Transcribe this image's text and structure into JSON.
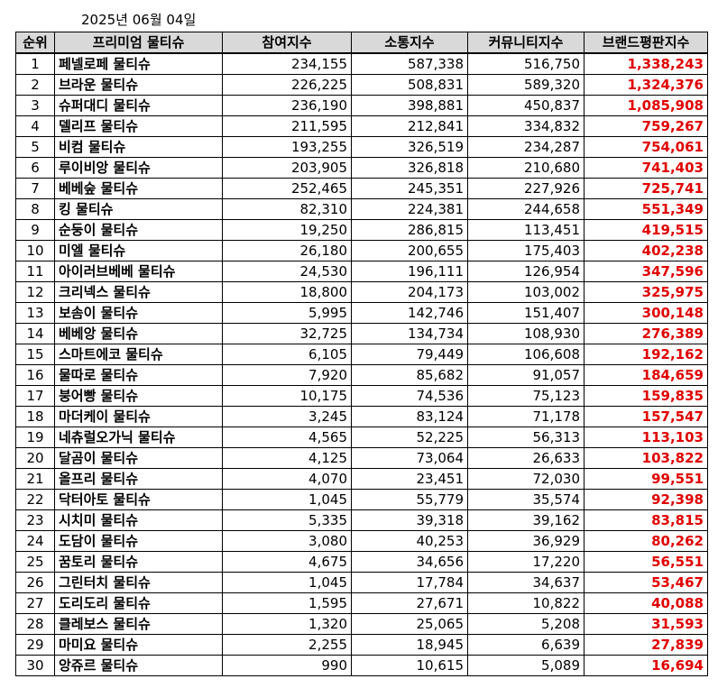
{
  "date": "2025년 06월 04일",
  "colors": {
    "header_bg": "#d9d9d9",
    "total_text": "#e00000",
    "border": "#000000"
  },
  "headers": [
    "순위",
    "프리미엄 물티슈",
    "참여지수",
    "소통지수",
    "커뮤니티지수",
    "브랜드평판지수"
  ],
  "rows": [
    {
      "rank": "1",
      "name": "페넬로페 물티슈",
      "participation": "234,155",
      "communication": "587,338",
      "community": "516,750",
      "total": "1,338,243"
    },
    {
      "rank": "2",
      "name": "브라운 물티슈",
      "participation": "226,225",
      "communication": "508,831",
      "community": "589,320",
      "total": "1,324,376"
    },
    {
      "rank": "3",
      "name": "슈퍼대디 물티슈",
      "participation": "236,190",
      "communication": "398,881",
      "community": "450,837",
      "total": "1,085,908"
    },
    {
      "rank": "4",
      "name": "델리프 물티슈",
      "participation": "211,595",
      "communication": "212,841",
      "community": "334,832",
      "total": "759,267"
    },
    {
      "rank": "5",
      "name": "비컴 물티슈",
      "participation": "193,255",
      "communication": "326,519",
      "community": "234,287",
      "total": "754,061"
    },
    {
      "rank": "6",
      "name": "루이비앙 물티슈",
      "participation": "203,905",
      "communication": "326,818",
      "community": "210,680",
      "total": "741,403"
    },
    {
      "rank": "7",
      "name": "베베숲 물티슈",
      "participation": "252,465",
      "communication": "245,351",
      "community": "227,926",
      "total": "725,741"
    },
    {
      "rank": "8",
      "name": "킹 물티슈",
      "participation": "82,310",
      "communication": "224,381",
      "community": "244,658",
      "total": "551,349"
    },
    {
      "rank": "9",
      "name": "순둥이 물티슈",
      "participation": "19,250",
      "communication": "286,815",
      "community": "113,451",
      "total": "419,515"
    },
    {
      "rank": "10",
      "name": "미엘 물티슈",
      "participation": "26,180",
      "communication": "200,655",
      "community": "175,403",
      "total": "402,238"
    },
    {
      "rank": "11",
      "name": "아이러브베베 물티슈",
      "participation": "24,530",
      "communication": "196,111",
      "community": "126,954",
      "total": "347,596"
    },
    {
      "rank": "12",
      "name": "크리넥스 물티슈",
      "participation": "18,800",
      "communication": "204,173",
      "community": "103,002",
      "total": "325,975"
    },
    {
      "rank": "13",
      "name": "보솜이 물티슈",
      "participation": "5,995",
      "communication": "142,746",
      "community": "151,407",
      "total": "300,148"
    },
    {
      "rank": "14",
      "name": "베베앙 물티슈",
      "participation": "32,725",
      "communication": "134,734",
      "community": "108,930",
      "total": "276,389"
    },
    {
      "rank": "15",
      "name": "스마트에코 물티슈",
      "participation": "6,105",
      "communication": "79,449",
      "community": "106,608",
      "total": "192,162"
    },
    {
      "rank": "16",
      "name": "물따로 물티슈",
      "participation": "7,920",
      "communication": "85,682",
      "community": "91,057",
      "total": "184,659"
    },
    {
      "rank": "17",
      "name": "붕어빵 물티슈",
      "participation": "10,175",
      "communication": "74,536",
      "community": "75,123",
      "total": "159,835"
    },
    {
      "rank": "18",
      "name": "마더케이 물티슈",
      "participation": "3,245",
      "communication": "83,124",
      "community": "71,178",
      "total": "157,547"
    },
    {
      "rank": "19",
      "name": "네츄럴오가닉 물티슈",
      "participation": "4,565",
      "communication": "52,225",
      "community": "56,313",
      "total": "113,103"
    },
    {
      "rank": "20",
      "name": "달곰이 물티슈",
      "participation": "4,125",
      "communication": "73,064",
      "community": "26,633",
      "total": "103,822"
    },
    {
      "rank": "21",
      "name": "올프리 물티슈",
      "participation": "4,070",
      "communication": "23,451",
      "community": "72,030",
      "total": "99,551"
    },
    {
      "rank": "22",
      "name": "닥터아토 물티슈",
      "participation": "1,045",
      "communication": "55,779",
      "community": "35,574",
      "total": "92,398"
    },
    {
      "rank": "23",
      "name": "시치미 물티슈",
      "participation": "5,335",
      "communication": "39,318",
      "community": "39,162",
      "total": "83,815"
    },
    {
      "rank": "24",
      "name": "도담이 물티슈",
      "participation": "3,080",
      "communication": "40,253",
      "community": "36,929",
      "total": "80,262"
    },
    {
      "rank": "25",
      "name": "꿈토리 물티슈",
      "participation": "4,675",
      "communication": "34,656",
      "community": "17,220",
      "total": "56,551"
    },
    {
      "rank": "26",
      "name": "그린터치 물티슈",
      "participation": "1,045",
      "communication": "17,784",
      "community": "34,637",
      "total": "53,467"
    },
    {
      "rank": "27",
      "name": "도리도리 물티슈",
      "participation": "1,595",
      "communication": "27,671",
      "community": "10,822",
      "total": "40,088"
    },
    {
      "rank": "28",
      "name": "클레보스 물티슈",
      "participation": "1,320",
      "communication": "25,065",
      "community": "5,208",
      "total": "31,593"
    },
    {
      "rank": "29",
      "name": "마미요 물티슈",
      "participation": "2,255",
      "communication": "18,945",
      "community": "6,639",
      "total": "27,839"
    },
    {
      "rank": "30",
      "name": "앙쥬르 물티슈",
      "participation": "990",
      "communication": "10,615",
      "community": "5,089",
      "total": "16,694"
    }
  ]
}
